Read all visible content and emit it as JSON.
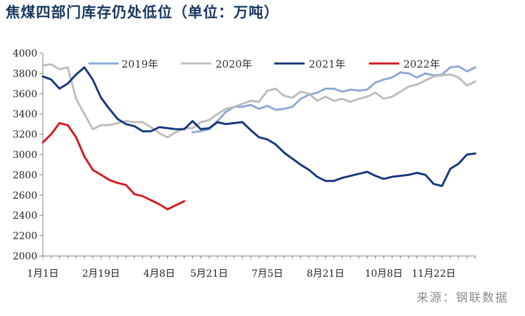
{
  "chart_data": {
    "type": "line",
    "title": "焦煤四部门库存仍处低位（单位：万吨）",
    "source": "来源：钢联数据",
    "ylim": [
      2000,
      4000
    ],
    "yticks": [
      2000,
      2200,
      2400,
      2600,
      2800,
      3000,
      3200,
      3400,
      3600,
      3800,
      4000
    ],
    "x_count": 53,
    "x_tick_labels": [
      {
        "idx": 0,
        "label": "1月1日"
      },
      {
        "idx": 7,
        "label": "2月19日"
      },
      {
        "idx": 14,
        "label": "4月8日"
      },
      {
        "idx": 20,
        "label": "5月21日"
      },
      {
        "idx": 27,
        "label": "7月5日"
      },
      {
        "idx": 34,
        "label": "8月21日"
      },
      {
        "idx": 41,
        "label": "10月8日"
      },
      {
        "idx": 47,
        "label": "11月22日"
      }
    ],
    "series": [
      {
        "name": "2019年",
        "color": "#8ea9d6",
        "start": 18,
        "values": [
          3220,
          3230,
          3250,
          3330,
          3420,
          3470,
          3470,
          3490,
          3450,
          3480,
          3440,
          3450,
          3470,
          3550,
          3590,
          3610,
          3650,
          3650,
          3620,
          3640,
          3630,
          3640,
          3710,
          3740,
          3760,
          3810,
          3800,
          3760,
          3800,
          3780,
          3790,
          3860,
          3870,
          3820,
          3860
        ]
      },
      {
        "name": "2020年",
        "color": "#bdbdbd",
        "start": 0,
        "values": [
          3880,
          3890,
          3840,
          3860,
          3550,
          3400,
          3250,
          3290,
          3290,
          3310,
          3330,
          3320,
          3320,
          3270,
          3210,
          3170,
          3220,
          3260,
          3260,
          3320,
          3340,
          3400,
          3450,
          3470,
          3500,
          3530,
          3520,
          3630,
          3650,
          3580,
          3560,
          3620,
          3600,
          3530,
          3570,
          3530,
          3550,
          3520,
          3550,
          3570,
          3610,
          3550,
          3570,
          3620,
          3670,
          3690,
          3730,
          3770,
          3780,
          3790,
          3760,
          3680,
          3720
        ]
      },
      {
        "name": "2021年",
        "color": "#16387e",
        "start": 0,
        "values": [
          3770,
          3740,
          3650,
          3700,
          3790,
          3860,
          3740,
          3560,
          3450,
          3350,
          3300,
          3280,
          3230,
          3230,
          3270,
          3260,
          3250,
          3250,
          3330,
          3250,
          3260,
          3320,
          3300,
          3310,
          3320,
          3240,
          3170,
          3150,
          3100,
          3020,
          2960,
          2900,
          2850,
          2780,
          2740,
          2740,
          2770,
          2790,
          2810,
          2830,
          2790,
          2760,
          2780,
          2790,
          2800,
          2820,
          2800,
          2710,
          2690,
          2860,
          2910,
          3000,
          3010
        ]
      },
      {
        "name": "2022年",
        "color": "#d6191f",
        "start": 0,
        "values": [
          3120,
          3200,
          3310,
          3290,
          3170,
          2980,
          2850,
          2800,
          2750,
          2720,
          2700,
          2610,
          2590,
          2550,
          2510,
          2460,
          2500,
          2540
        ]
      }
    ]
  }
}
